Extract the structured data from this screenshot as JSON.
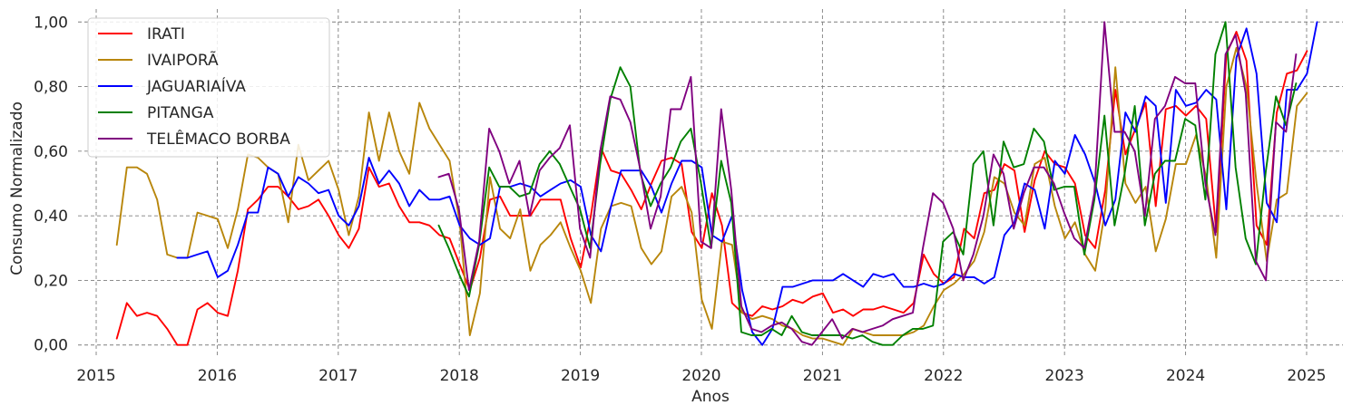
{
  "chart_data": {
    "type": "line",
    "title": "",
    "xlabel": "Anos",
    "ylabel": "Consumo Normalizado",
    "xlim": [
      2014.85,
      2025.3
    ],
    "ylim": [
      -0.04,
      1.04
    ],
    "x_ticks": [
      2015,
      2016,
      2017,
      2018,
      2019,
      2020,
      2021,
      2022,
      2023,
      2024,
      2025
    ],
    "x_tick_labels": [
      "2015",
      "2016",
      "2017",
      "2018",
      "2019",
      "2020",
      "2021",
      "2022",
      "2023",
      "2024",
      "2025"
    ],
    "y_ticks": [
      0,
      0.2,
      0.4,
      0.6,
      0.8,
      1.0
    ],
    "y_tick_labels": [
      "0,00",
      "0,20",
      "0,40",
      "0,60",
      "0,80",
      "1,00"
    ],
    "grid": true,
    "legend_position": "top-left",
    "series": [
      {
        "name": "IRATI",
        "color": "#ff0000",
        "start": 2015.17,
        "values": [
          0.02,
          0.13,
          0.09,
          0.1,
          0.09,
          0.05,
          0.0,
          0.0,
          0.11,
          0.13,
          0.1,
          0.09,
          0.23,
          0.42,
          0.45,
          0.49,
          0.49,
          0.46,
          0.42,
          0.43,
          0.45,
          0.4,
          0.34,
          0.3,
          0.36,
          0.55,
          0.49,
          0.5,
          0.43,
          0.38,
          0.38,
          0.37,
          0.34,
          0.33,
          0.25,
          0.17,
          0.27,
          0.45,
          0.46,
          0.4,
          0.4,
          0.4,
          0.45,
          0.45,
          0.45,
          0.33,
          0.24,
          0.4,
          0.61,
          0.54,
          0.53,
          0.48,
          0.42,
          0.5,
          0.57,
          0.58,
          0.56,
          0.35,
          0.3,
          0.47,
          0.37,
          0.13,
          0.1,
          0.09,
          0.12,
          0.11,
          0.12,
          0.14,
          0.13,
          0.15,
          0.16,
          0.1,
          0.11,
          0.09,
          0.11,
          0.11,
          0.12,
          0.11,
          0.1,
          0.13,
          0.28,
          0.22,
          0.19,
          0.21,
          0.36,
          0.33,
          0.47,
          0.48,
          0.56,
          0.54,
          0.35,
          0.51,
          0.6,
          0.56,
          0.55,
          0.5,
          0.34,
          0.3,
          0.48,
          0.79,
          0.59,
          0.67,
          0.75,
          0.43,
          0.73,
          0.74,
          0.71,
          0.74,
          0.7,
          0.35,
          0.9,
          0.97,
          0.88,
          0.37,
          0.31,
          0.72,
          0.84,
          0.85,
          0.91
        ]
      },
      {
        "name": "IVAIPORÃ",
        "color": "#b8860b",
        "start": 2015.17,
        "values": [
          0.31,
          0.55,
          0.55,
          0.53,
          0.45,
          0.28,
          0.27,
          0.27,
          0.41,
          0.4,
          0.39,
          0.3,
          0.42,
          0.59,
          0.58,
          0.55,
          0.53,
          0.38,
          0.62,
          0.51,
          0.54,
          0.57,
          0.48,
          0.34,
          0.46,
          0.72,
          0.57,
          0.72,
          0.6,
          0.53,
          0.75,
          0.67,
          0.62,
          0.57,
          0.38,
          0.03,
          0.16,
          0.52,
          0.36,
          0.33,
          0.42,
          0.23,
          0.31,
          0.34,
          0.38,
          0.3,
          0.23,
          0.13,
          0.36,
          0.43,
          0.44,
          0.43,
          0.3,
          0.25,
          0.29,
          0.46,
          0.49,
          0.41,
          0.14,
          0.05,
          0.32,
          0.31,
          0.1,
          0.08,
          0.09,
          0.08,
          0.06,
          0.05,
          0.03,
          0.02,
          0.02,
          0.01,
          0.0,
          0.05,
          0.04,
          0.03,
          0.03,
          0.03,
          0.03,
          0.04,
          0.06,
          0.12,
          0.17,
          0.19,
          0.22,
          0.26,
          0.35,
          0.52,
          0.5,
          0.41,
          0.37,
          0.56,
          0.58,
          0.43,
          0.33,
          0.38,
          0.28,
          0.23,
          0.42,
          0.86,
          0.5,
          0.44,
          0.49,
          0.29,
          0.39,
          0.56,
          0.56,
          0.65,
          0.52,
          0.27,
          0.8,
          0.92,
          0.8,
          0.5,
          0.26,
          0.45,
          0.47,
          0.74,
          0.78
        ]
      },
      {
        "name": "JAGUARIAÍVA",
        "color": "#0000ff",
        "start": 2015.67,
        "values": [
          0.27,
          0.27,
          0.28,
          0.29,
          0.21,
          0.23,
          0.31,
          0.41,
          0.41,
          0.55,
          0.53,
          0.46,
          0.52,
          0.5,
          0.47,
          0.48,
          0.4,
          0.37,
          0.43,
          0.58,
          0.5,
          0.54,
          0.5,
          0.43,
          0.48,
          0.45,
          0.45,
          0.46,
          0.37,
          0.33,
          0.31,
          0.33,
          0.49,
          0.49,
          0.5,
          0.49,
          0.46,
          0.48,
          0.5,
          0.51,
          0.49,
          0.34,
          0.29,
          0.43,
          0.54,
          0.54,
          0.54,
          0.49,
          0.41,
          0.5,
          0.57,
          0.57,
          0.55,
          0.34,
          0.32,
          0.4,
          0.17,
          0.04,
          0.0,
          0.05,
          0.18,
          0.18,
          0.19,
          0.2,
          0.2,
          0.2,
          0.22,
          0.2,
          0.18,
          0.22,
          0.21,
          0.22,
          0.18,
          0.18,
          0.19,
          0.18,
          0.19,
          0.22,
          0.21,
          0.21,
          0.19,
          0.21,
          0.34,
          0.38,
          0.5,
          0.48,
          0.36,
          0.57,
          0.53,
          0.65,
          0.59,
          0.5,
          0.37,
          0.45,
          0.72,
          0.66,
          0.77,
          0.74,
          0.44,
          0.79,
          0.74,
          0.75,
          0.79,
          0.76,
          0.42,
          0.89,
          0.98,
          0.84,
          0.44,
          0.38,
          0.79,
          0.79,
          0.84,
          1.0
        ]
      },
      {
        "name": "PITANGA",
        "color": "#008000",
        "start": 2017.83,
        "values": [
          0.37,
          0.3,
          0.22,
          0.15,
          0.31,
          0.55,
          0.49,
          0.49,
          0.46,
          0.47,
          0.56,
          0.6,
          0.56,
          0.49,
          0.42,
          0.3,
          0.56,
          0.76,
          0.86,
          0.8,
          0.53,
          0.43,
          0.5,
          0.55,
          0.63,
          0.67,
          0.5,
          0.3,
          0.57,
          0.44,
          0.04,
          0.03,
          0.03,
          0.05,
          0.03,
          0.09,
          0.04,
          0.03,
          0.03,
          0.03,
          0.03,
          0.02,
          0.03,
          0.01,
          0.0,
          0.0,
          0.03,
          0.05,
          0.05,
          0.06,
          0.32,
          0.35,
          0.28,
          0.56,
          0.6,
          0.37,
          0.63,
          0.55,
          0.56,
          0.67,
          0.63,
          0.48,
          0.49,
          0.49,
          0.28,
          0.45,
          0.71,
          0.37,
          0.53,
          0.74,
          0.37,
          0.53,
          0.57,
          0.57,
          0.7,
          0.68,
          0.45,
          0.9,
          1.0,
          0.55,
          0.33,
          0.25,
          0.54,
          0.77,
          0.68,
          0.81
        ]
      },
      {
        "name": "TELÊMACO BORBA",
        "color": "#800080",
        "start": 2017.83,
        "values": [
          0.52,
          0.53,
          0.42,
          0.17,
          0.32,
          0.67,
          0.6,
          0.5,
          0.57,
          0.4,
          0.54,
          0.58,
          0.61,
          0.68,
          0.36,
          0.27,
          0.6,
          0.77,
          0.76,
          0.69,
          0.54,
          0.36,
          0.46,
          0.73,
          0.73,
          0.83,
          0.32,
          0.3,
          0.73,
          0.48,
          0.12,
          0.05,
          0.04,
          0.06,
          0.07,
          0.05,
          0.01,
          0.0,
          0.04,
          0.08,
          0.02,
          0.05,
          0.04,
          0.05,
          0.06,
          0.08,
          0.09,
          0.1,
          0.3,
          0.47,
          0.44,
          0.36,
          0.2,
          0.28,
          0.4,
          0.59,
          0.53,
          0.36,
          0.47,
          0.55,
          0.55,
          0.5,
          0.41,
          0.33,
          0.3,
          0.47,
          1.0,
          0.66,
          0.66,
          0.6,
          0.4,
          0.7,
          0.74,
          0.83,
          0.81,
          0.81,
          0.5,
          0.34,
          0.9,
          0.96,
          0.78,
          0.26,
          0.2,
          0.69,
          0.66,
          0.9
        ]
      }
    ]
  }
}
